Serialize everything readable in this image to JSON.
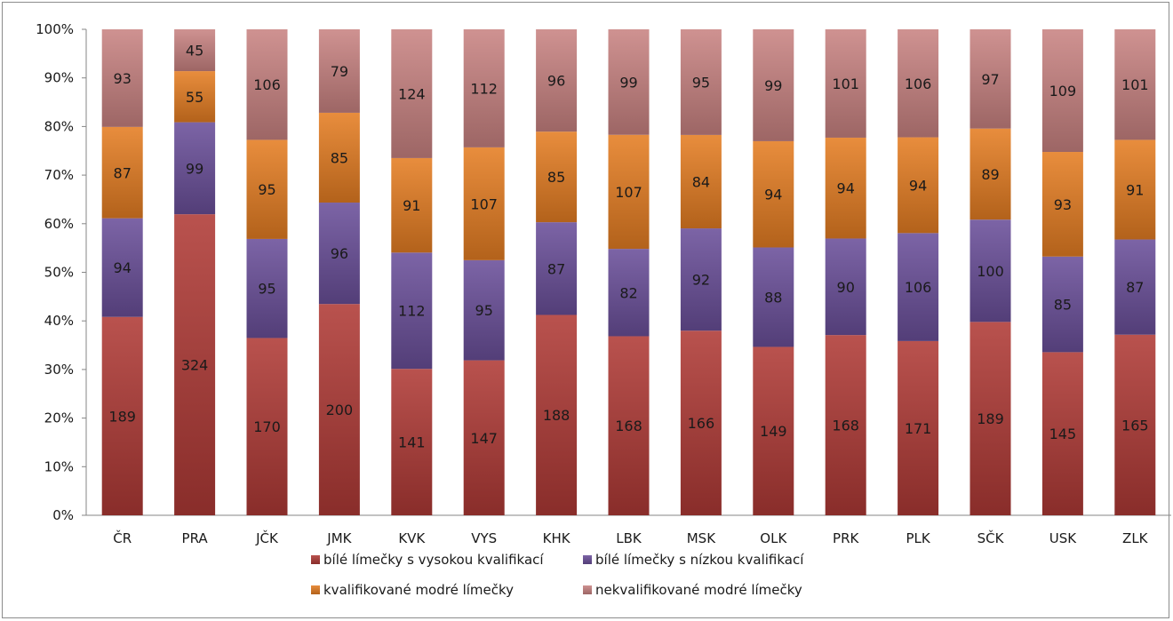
{
  "chart_data": {
    "type": "bar",
    "stacked": true,
    "normalized": true,
    "categories": [
      "ČR",
      "PRA",
      "JČK",
      "JMK",
      "KVK",
      "VYS",
      "KHK",
      "LBK",
      "MSK",
      "OLK",
      "PRK",
      "PLK",
      "SČK",
      "USK",
      "ZLK"
    ],
    "series": [
      {
        "name": "bílé límečky s vysokou kvalifikací",
        "color": "#b03a36",
        "values": [
          189,
          324,
          170,
          200,
          141,
          147,
          188,
          168,
          166,
          149,
          168,
          171,
          189,
          145,
          165
        ]
      },
      {
        "name": "bílé límečky s nízkou kvalifikací",
        "color": "#6a4f9a",
        "values": [
          94,
          99,
          95,
          96,
          112,
          95,
          87,
          82,
          92,
          88,
          90,
          106,
          100,
          85,
          87
        ]
      },
      {
        "name": "kvalifikované modré límečky",
        "color": "#e57e22",
        "values": [
          87,
          55,
          95,
          85,
          91,
          107,
          85,
          107,
          84,
          94,
          94,
          94,
          89,
          93,
          91
        ]
      },
      {
        "name": "nekvalifikované modré límečky",
        "color": "#c98382",
        "values": [
          93,
          45,
          106,
          79,
          124,
          112,
          96,
          99,
          95,
          99,
          101,
          106,
          97,
          109,
          101
        ]
      }
    ],
    "y_ticks": [
      "0%",
      "10%",
      "20%",
      "30%",
      "40%",
      "50%",
      "60%",
      "70%",
      "80%",
      "90%",
      "100%"
    ],
    "ylim": [
      0,
      100
    ],
    "grid": false,
    "legend_position": "bottom"
  }
}
